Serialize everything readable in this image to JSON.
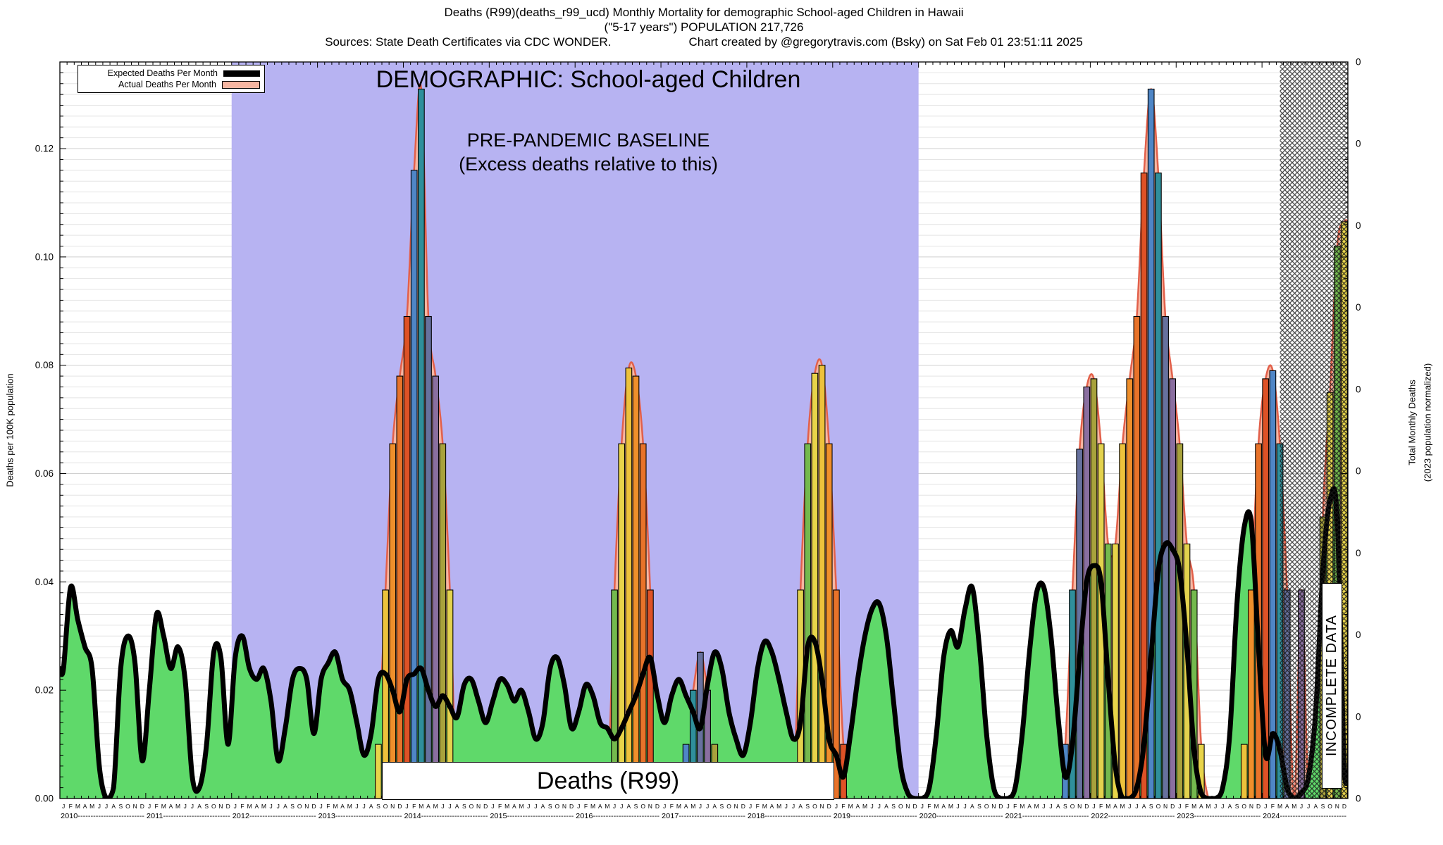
{
  "header": {
    "title_line1": "Deaths (R99)(deaths_r99_ucd) Monthly Mortality for demographic School-aged Children in Hawaii",
    "title_line2": "(\"5-17 years\") POPULATION 217,726",
    "sources": "Sources: State Death Certificates via CDC WONDER.",
    "credit": "Chart created by @gregorytravis.com (Bsky) on Sat Feb 01 23:51:11 2025"
  },
  "legend": {
    "expected_label": "Expected Deaths Per Month",
    "actual_label": "Actual Deaths Per Month",
    "expected_color": "#000000",
    "actual_color": "#f6b6a2"
  },
  "annotations": {
    "demographic": "DEMOGRAPHIC: School-aged Children",
    "baseline_line1": "PRE-PANDEMIC BASELINE",
    "baseline_line2": "(Excess deaths relative to this)",
    "series_box": "Deaths (R99)",
    "incomplete": "INCOMPLETE DATA"
  },
  "axes": {
    "left_label": "Deaths per 100K population",
    "right_label_line1": "Total Monthly Deaths",
    "right_label_line2": "(2023 population normalized)",
    "y_ticks": [
      "0.00",
      "0.02",
      "0.04",
      "0.06",
      "0.08",
      "0.10",
      "0.12"
    ],
    "right_ticks": [
      "0",
      "0",
      "0",
      "0",
      "0",
      "0",
      "0",
      "0",
      "0",
      "0"
    ],
    "month_letters": [
      "J",
      "F",
      "M",
      "A",
      "M",
      "J",
      "J",
      "A",
      "S",
      "O",
      "N",
      "D"
    ],
    "years": [
      "2010",
      "2011",
      "2012",
      "2013",
      "2014",
      "2015",
      "2016",
      "2017",
      "2018",
      "2019",
      "2020",
      "2021",
      "2022",
      "2023",
      "2024"
    ]
  },
  "chart_data": {
    "type": "bar+line",
    "title": "Deaths (R99)",
    "y_axis": {
      "label": "Deaths per 100K population",
      "min": 0.0,
      "max": 0.136,
      "tick_step": 0.02,
      "minor_step": 0.002
    },
    "y2_axis": {
      "label": "Total Monthly Deaths (2023 population normalized)",
      "tick_label": "0",
      "tick_count": 10
    },
    "x_axis": {
      "start_year": 2010,
      "end_year": 2024,
      "unit": "month"
    },
    "baseline_band": {
      "label": "PRE-PANDEMIC BASELINE (Excess deaths relative to this)",
      "from_month": "2012-01",
      "to_month": "2019-12",
      "color": "#b7b3f2"
    },
    "incomplete_region": {
      "label": "INCOMPLETE DATA",
      "from_month": "2024-04"
    },
    "series": [
      {
        "name": "Expected Deaths Per Month",
        "type": "line+area",
        "line_color": "#000000",
        "fill_color": "#5fd96a",
        "values_per_100k_by_year": {
          "2010": [
            0.024,
            0.039,
            0.033,
            0.028,
            0.024,
            0.006,
            0.0,
            0.002,
            0.024,
            0.03,
            0.025,
            0.007
          ],
          "2011": [
            0.02,
            0.034,
            0.03,
            0.024,
            0.028,
            0.022,
            0.004,
            0.002,
            0.01,
            0.027,
            0.026,
            0.01
          ],
          "2012": [
            0.026,
            0.03,
            0.024,
            0.022,
            0.024,
            0.018,
            0.007,
            0.013,
            0.022,
            0.024,
            0.022,
            0.012
          ],
          "2013": [
            0.022,
            0.025,
            0.027,
            0.022,
            0.02,
            0.014,
            0.008,
            0.012,
            0.022,
            0.023,
            0.02,
            0.016
          ],
          "2014": [
            0.022,
            0.023,
            0.024,
            0.02,
            0.017,
            0.019,
            0.017,
            0.015,
            0.021,
            0.022,
            0.018,
            0.014
          ],
          "2015": [
            0.018,
            0.022,
            0.021,
            0.018,
            0.02,
            0.016,
            0.011,
            0.014,
            0.024,
            0.026,
            0.021,
            0.013
          ],
          "2016": [
            0.016,
            0.021,
            0.019,
            0.014,
            0.013,
            0.011,
            0.013,
            0.016,
            0.019,
            0.023,
            0.026,
            0.019
          ],
          "2017": [
            0.014,
            0.019,
            0.022,
            0.019,
            0.016,
            0.013,
            0.021,
            0.027,
            0.024,
            0.016,
            0.011,
            0.008
          ],
          "2018": [
            0.014,
            0.024,
            0.029,
            0.027,
            0.022,
            0.016,
            0.011,
            0.014,
            0.028,
            0.029,
            0.022,
            0.011
          ],
          "2019": [
            0.008,
            0.004,
            0.012,
            0.022,
            0.03,
            0.035,
            0.036,
            0.03,
            0.018,
            0.006,
            0.001,
            0.0
          ],
          "2020": [
            0.0,
            0.002,
            0.012,
            0.026,
            0.031,
            0.028,
            0.035,
            0.039,
            0.028,
            0.012,
            0.002,
            0.0
          ],
          "2021": [
            0.0,
            0.002,
            0.012,
            0.027,
            0.038,
            0.039,
            0.03,
            0.015,
            0.004,
            0.01,
            0.026,
            0.04
          ],
          "2022": [
            0.043,
            0.04,
            0.022,
            0.006,
            0.0,
            0.0,
            0.002,
            0.01,
            0.026,
            0.042,
            0.047,
            0.046
          ],
          "2023": [
            0.042,
            0.028,
            0.009,
            0.001,
            0.0,
            0.0,
            0.002,
            0.012,
            0.036,
            0.05,
            0.051,
            0.028
          ],
          "2024": [
            0.008,
            0.012,
            0.009,
            0.002,
            0.0,
            0.001,
            0.004,
            0.016,
            0.042,
            0.055,
            0.052,
            0.005
          ]
        }
      },
      {
        "name": "Actual Deaths Per Month",
        "type": "bars+envelope",
        "envelope_stroke": "#e2604a",
        "envelope_fill": "#f6b6a2",
        "bar_palette": [
          "#e8d44a",
          "#edc23c",
          "#ef8f2b",
          "#e8732a",
          "#de5226",
          "#4f86c6",
          "#2f8f9b",
          "#67719e",
          "#8a6fa0",
          "#a8a23c",
          "#e3d24e",
          "#74b94e"
        ],
        "values_per_100k_by_year": {
          "2010": [
            0,
            0,
            0,
            0,
            0,
            0,
            0,
            0,
            0,
            0,
            0,
            0
          ],
          "2011": [
            0,
            0,
            0,
            0,
            0,
            0,
            0,
            0,
            0,
            0,
            0,
            0
          ],
          "2012": [
            0,
            0,
            0,
            0,
            0,
            0,
            0,
            0,
            0,
            0,
            0,
            0
          ],
          "2013": [
            0,
            0,
            0,
            0,
            0,
            0,
            0,
            0,
            0.01,
            0.0385,
            0.0655,
            0.078
          ],
          "2014": [
            0.089,
            0.116,
            0.131,
            0.089,
            0.078,
            0.0655,
            0.0385,
            0,
            0,
            0,
            0,
            0
          ],
          "2015": [
            0,
            0,
            0,
            0,
            0,
            0,
            0,
            0,
            0,
            0,
            0,
            0
          ],
          "2016": [
            0,
            0,
            0,
            0,
            0,
            0.0385,
            0.0655,
            0.0795,
            0.078,
            0.0655,
            0.0385,
            0
          ],
          "2017": [
            0,
            0,
            0,
            0.01,
            0.02,
            0.027,
            0.02,
            0.01,
            0,
            0,
            0,
            0
          ],
          "2018": [
            0,
            0,
            0,
            0,
            0,
            0,
            0,
            0.0385,
            0.0655,
            0.0785,
            0.08,
            0.0655
          ],
          "2019": [
            0.0385,
            0.01,
            0,
            0,
            0,
            0,
            0,
            0,
            0,
            0,
            0,
            0
          ],
          "2020": [
            0,
            0,
            0,
            0,
            0,
            0,
            0,
            0,
            0,
            0,
            0,
            0
          ],
          "2021": [
            0,
            0,
            0,
            0,
            0,
            0,
            0,
            0,
            0.01,
            0.0385,
            0.0645,
            0.076
          ],
          "2022": [
            0.0775,
            0.0655,
            0.047,
            0.047,
            0.0655,
            0.0775,
            0.089,
            0.1155,
            0.131,
            0.1155,
            0.089,
            0.0775
          ],
          "2023": [
            0.0655,
            0.047,
            0.0385,
            0.01,
            0,
            0,
            0,
            0,
            0,
            0.01,
            0.0385,
            0.0655
          ],
          "2024": [
            0.0775,
            0.079,
            0.0655,
            0.0385,
            0,
            0.0385,
            0,
            0,
            0.052,
            0.075,
            0.102,
            0.1065
          ]
        }
      }
    ]
  }
}
